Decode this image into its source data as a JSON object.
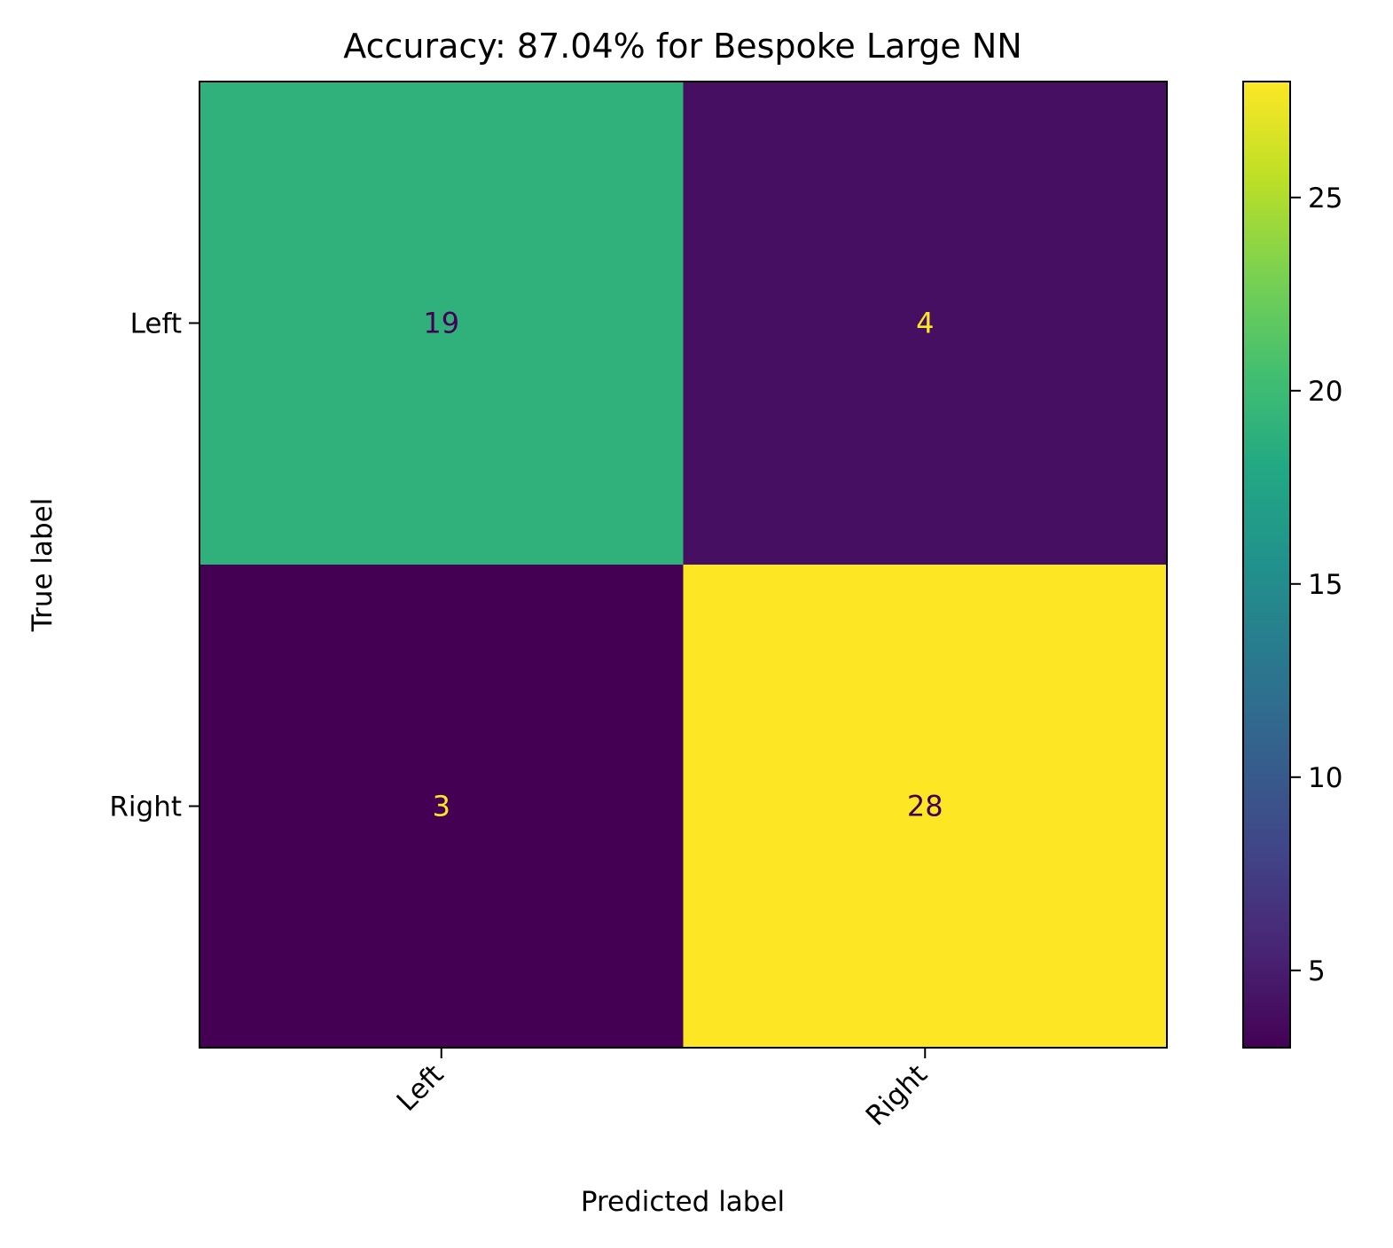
{
  "chart_data": {
    "type": "heatmap",
    "title": "Accuracy: 87.04% for Bespoke Large NN",
    "xlabel": "Predicted label",
    "ylabel": "True label",
    "x_categories": [
      "Left",
      "Right"
    ],
    "y_categories": [
      "Left",
      "Right"
    ],
    "matrix": [
      [
        19,
        4
      ],
      [
        3,
        28
      ]
    ],
    "colormap": "viridis",
    "color_range": [
      3,
      28
    ],
    "colorbar_ticks": [
      5,
      10,
      15,
      20,
      25
    ],
    "text_colors": {
      "light": "#fde725",
      "dark": "#440154"
    },
    "x_tick_rotation_deg": 45,
    "grid": false
  }
}
